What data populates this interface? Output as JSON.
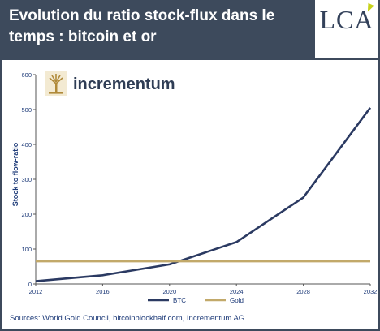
{
  "header": {
    "title_line1": "Evolution du ratio stock-flux dans le",
    "title_line2": "temps : bitcoin et or",
    "logo": "LCA",
    "bg_color": "#3d4a5c"
  },
  "brand": {
    "name": "incrementum",
    "icon": "tree-icon"
  },
  "chart_data": {
    "type": "line",
    "title": "",
    "xlabel": "",
    "ylabel": "Stock to flow-ratio",
    "xlim": [
      2012,
      2032
    ],
    "ylim": [
      0,
      600
    ],
    "x_ticks": [
      2012,
      2016,
      2020,
      2024,
      2028,
      2032
    ],
    "y_ticks": [
      0,
      100,
      200,
      300,
      400,
      500,
      600
    ],
    "legend_position": "bottom",
    "series": [
      {
        "name": "BTC",
        "color": "#2b3a62",
        "x": [
          2012,
          2016,
          2020,
          2024,
          2028,
          2032
        ],
        "y": [
          8,
          25,
          56,
          120,
          248,
          505
        ]
      },
      {
        "name": "Gold",
        "color": "#c2a96a",
        "x": [
          2012,
          2032
        ],
        "y": [
          65,
          65
        ]
      }
    ]
  },
  "source": "Sources: World Gold Council, bitcoinblockhalf.com, Incrementum AG"
}
